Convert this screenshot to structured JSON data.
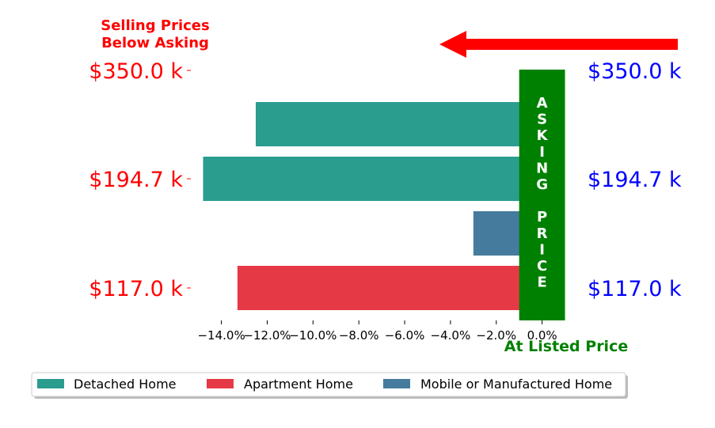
{
  "chart_data": {
    "type": "bar",
    "orientation": "horizontal",
    "categories": [
      "$117.0 k",
      "$194.7 k",
      "$350.0 k"
    ],
    "right_labels": [
      "$117.0 k",
      "$194.7 k",
      "$350.0 k"
    ],
    "bars": [
      {
        "category": "$117.0 k",
        "series": "Apartment Home",
        "value": -13.3
      },
      {
        "category": "$194.7 k",
        "series": "Mobile or Manufactured Home",
        "value": -3.0
      },
      {
        "category": "$194.7 k",
        "series": "Detached Home",
        "value": -14.8
      },
      {
        "category": "$350.0 k",
        "series": "Detached Home",
        "value": -12.5
      }
    ],
    "series": [
      {
        "name": "Detached Home",
        "color": "#2a9d8f"
      },
      {
        "name": "Apartment Home",
        "color": "#e63946"
      },
      {
        "name": "Mobile or Manufactured Home",
        "color": "#457b9d"
      }
    ],
    "xticks": [
      "−14.0%",
      "−12.0%",
      "−10.0%",
      "−8.0%",
      "−6.0%",
      "−4.0%",
      "−2.0%",
      "0.0%"
    ],
    "xtick_values": [
      -14,
      -12,
      -10,
      -8,
      -6,
      -4,
      -2,
      0
    ],
    "xlim": [
      -15.3,
      1.05
    ],
    "asking_band": {
      "text": "ASKING PRICE",
      "from": -1.0,
      "to": 1.0,
      "color": "#008000"
    },
    "annotations": {
      "top_left": [
        "Selling Prices",
        "Below Asking"
      ],
      "bottom_right": "At Listed Price"
    },
    "legend_placement": "bottom-left",
    "grid": false
  }
}
